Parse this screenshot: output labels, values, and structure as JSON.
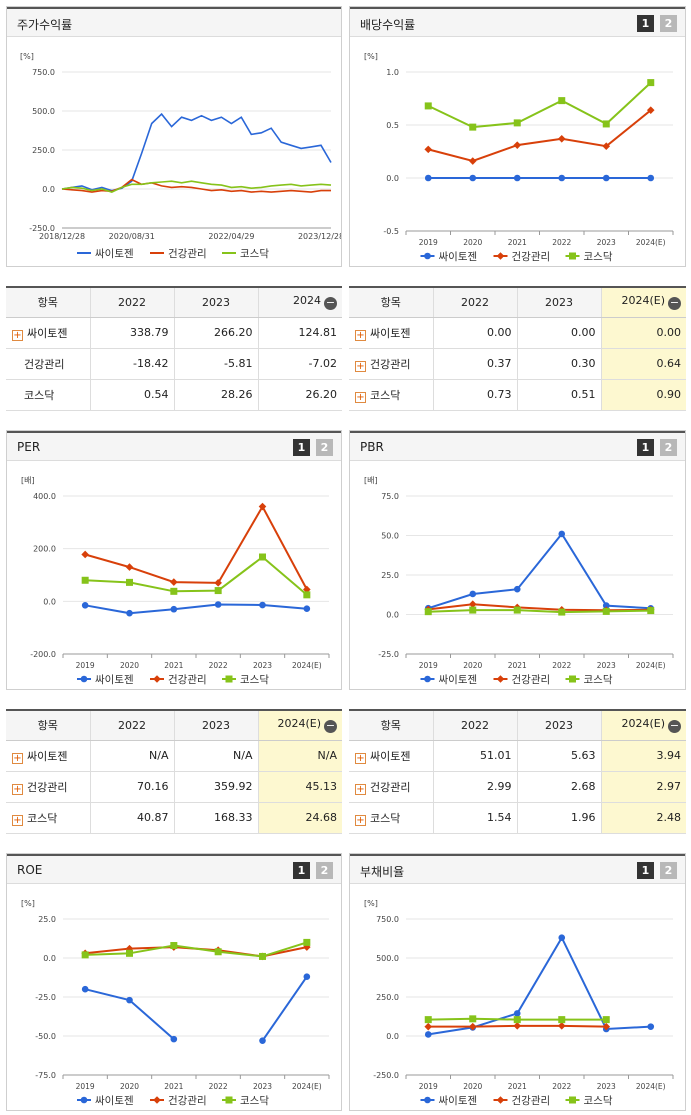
{
  "colors": {
    "series1": "#2a67d8",
    "series2": "#d8400a",
    "series3": "#86c31a"
  },
  "buttons": {
    "b1": "1",
    "b2": "2"
  },
  "table_common": {
    "col_item": "항목"
  },
  "panels": {
    "stock": {
      "title": "주가수익률",
      "unit": "[%]",
      "yticks": [
        "750.0",
        "500.0",
        "250.0",
        "0.0",
        "-250.0"
      ],
      "xticks": [
        "2018/12/28",
        "2020/08/31",
        "2022/04/29",
        "2023/12/28"
      ]
    },
    "dividend": {
      "title": "배당수익률",
      "unit": "[%]",
      "yticks": [
        "1.0",
        "0.5",
        "0.0",
        "-0.5"
      ],
      "xticks": [
        "2019",
        "2020",
        "2021",
        "2022",
        "2023",
        "2024(E)"
      ]
    },
    "per": {
      "title": "PER",
      "unit": "[배]",
      "yticks": [
        "400.0",
        "200.0",
        "0.0",
        "-200.0"
      ],
      "xticks": [
        "2019",
        "2020",
        "2021",
        "2022",
        "2023",
        "2024(E)"
      ]
    },
    "pbr": {
      "title": "PBR",
      "unit": "[배]",
      "yticks": [
        "75.0",
        "50.0",
        "25.0",
        "0.0",
        "-25.0"
      ],
      "xticks": [
        "2019",
        "2020",
        "2021",
        "2022",
        "2023",
        "2024(E)"
      ]
    },
    "roe": {
      "title": "ROE",
      "unit": "[%]",
      "yticks": [
        "25.0",
        "0.0",
        "-25.0",
        "-50.0",
        "-75.0"
      ],
      "xticks": [
        "2019",
        "2020",
        "2021",
        "2022",
        "2023",
        "2024(E)"
      ]
    },
    "debt": {
      "title": "부채비율",
      "unit": "[%]",
      "yticks": [
        "750.0",
        "500.0",
        "250.0",
        "0.0",
        "-250.0"
      ],
      "xticks": [
        "2019",
        "2020",
        "2021",
        "2022",
        "2023",
        "2024(E)"
      ]
    }
  },
  "legend": [
    "싸이토젠",
    "건강관리",
    "코스닥"
  ],
  "tables": {
    "stock": {
      "cols": [
        "2022",
        "2023",
        "2024"
      ],
      "rows": [
        [
          "싸이토젠",
          "338.79",
          "266.20",
          "124.81"
        ],
        [
          "건강관리",
          "-18.42",
          "-5.81",
          "-7.02"
        ],
        [
          "코스닥",
          "0.54",
          "28.26",
          "26.20"
        ]
      ]
    },
    "dividend": {
      "cols": [
        "2022",
        "2023",
        "2024(E)"
      ],
      "rows": [
        [
          "싸이토젠",
          "0.00",
          "0.00",
          "0.00"
        ],
        [
          "건강관리",
          "0.37",
          "0.30",
          "0.64"
        ],
        [
          "코스닥",
          "0.73",
          "0.51",
          "0.90"
        ]
      ]
    },
    "per": {
      "cols": [
        "2022",
        "2023",
        "2024(E)"
      ],
      "rows": [
        [
          "싸이토젠",
          "N/A",
          "N/A",
          "N/A"
        ],
        [
          "건강관리",
          "70.16",
          "359.92",
          "45.13"
        ],
        [
          "코스닥",
          "40.87",
          "168.33",
          "24.68"
        ]
      ]
    },
    "pbr": {
      "cols": [
        "2022",
        "2023",
        "2024(E)"
      ],
      "rows": [
        [
          "싸이토젠",
          "51.01",
          "5.63",
          "3.94"
        ],
        [
          "건강관리",
          "2.99",
          "2.68",
          "2.97"
        ],
        [
          "코스닥",
          "1.54",
          "1.96",
          "2.48"
        ]
      ]
    }
  },
  "chart_data": [
    {
      "id": "stock",
      "type": "line",
      "title": "주가수익률",
      "ylabel": "[%]",
      "ylim": [
        -250,
        750
      ],
      "x": [
        "2018/12/28",
        "2019/03",
        "2019/06",
        "2019/09",
        "2019/12",
        "2020/03",
        "2020/06",
        "2020/08/31",
        "2020/10",
        "2020/12",
        "2021/02",
        "2021/04",
        "2021/06",
        "2021/08",
        "2021/10",
        "2021/12",
        "2022/02",
        "2022/04/29",
        "2022/07",
        "2022/09",
        "2022/11",
        "2023/01",
        "2023/03",
        "2023/05",
        "2023/07",
        "2023/09",
        "2023/12/28",
        "2024/03"
      ],
      "series": [
        {
          "name": "싸이토젠",
          "values": [
            0,
            10,
            20,
            -5,
            10,
            -10,
            5,
            50,
            230,
            420,
            480,
            400,
            460,
            440,
            470,
            440,
            460,
            420,
            460,
            350,
            360,
            390,
            300,
            280,
            260,
            270,
            280,
            170
          ]
        },
        {
          "name": "건강관리",
          "values": [
            0,
            -5,
            -10,
            -20,
            -10,
            -15,
            10,
            60,
            30,
            40,
            20,
            10,
            15,
            10,
            0,
            -10,
            -5,
            -15,
            -10,
            -20,
            -15,
            -20,
            -15,
            -10,
            -15,
            -20,
            -10,
            -10
          ]
        },
        {
          "name": "코스닥",
          "values": [
            0,
            10,
            5,
            -10,
            0,
            -20,
            10,
            30,
            30,
            40,
            45,
            50,
            40,
            50,
            40,
            30,
            25,
            10,
            15,
            5,
            10,
            20,
            25,
            30,
            20,
            25,
            30,
            25
          ]
        }
      ]
    },
    {
      "id": "dividend",
      "type": "line",
      "title": "배당수익률",
      "ylabel": "[%]",
      "ylim": [
        -0.5,
        1.0
      ],
      "x": [
        "2019",
        "2020",
        "2021",
        "2022",
        "2023",
        "2024(E)"
      ],
      "series": [
        {
          "name": "싸이토젠",
          "values": [
            0,
            0,
            0,
            0,
            0,
            0
          ]
        },
        {
          "name": "건강관리",
          "values": [
            0.27,
            0.16,
            0.31,
            0.37,
            0.3,
            0.64
          ]
        },
        {
          "name": "코스닥",
          "values": [
            0.68,
            0.48,
            0.52,
            0.73,
            0.51,
            0.9
          ]
        }
      ]
    },
    {
      "id": "per",
      "type": "line",
      "title": "PER",
      "ylabel": "[배]",
      "ylim": [
        -200,
        400
      ],
      "x": [
        "2019",
        "2020",
        "2021",
        "2022",
        "2023",
        "2024(E)"
      ],
      "series": [
        {
          "name": "싸이토젠",
          "values": [
            -15,
            -45,
            -30,
            -12,
            -14,
            -28
          ]
        },
        {
          "name": "건강관리",
          "values": [
            178,
            130,
            73,
            70.16,
            359.92,
            45.13
          ]
        },
        {
          "name": "코스닥",
          "values": [
            80,
            72,
            38,
            40.87,
            168.33,
            24.68
          ]
        }
      ]
    },
    {
      "id": "pbr",
      "type": "line",
      "title": "PBR",
      "ylabel": "[배]",
      "ylim": [
        -25,
        75
      ],
      "x": [
        "2019",
        "2020",
        "2021",
        "2022",
        "2023",
        "2024(E)"
      ],
      "series": [
        {
          "name": "싸이토젠",
          "values": [
            4,
            13,
            16,
            51.01,
            5.63,
            3.94
          ]
        },
        {
          "name": "건강관리",
          "values": [
            3.2,
            6.5,
            4.5,
            2.99,
            2.68,
            2.97
          ]
        },
        {
          "name": "코스닥",
          "values": [
            1.8,
            2.8,
            2.8,
            1.54,
            1.96,
            2.48
          ]
        }
      ]
    },
    {
      "id": "roe",
      "type": "line",
      "title": "ROE",
      "ylabel": "[%]",
      "ylim": [
        -75,
        25
      ],
      "x": [
        "2019",
        "2020",
        "2021",
        "2022",
        "2023",
        "2024(E)"
      ],
      "series": [
        {
          "name": "싸이토젠",
          "values": [
            -20,
            -27,
            -52,
            null,
            -53,
            -12
          ]
        },
        {
          "name": "건강관리",
          "values": [
            3,
            6,
            7,
            5,
            1,
            7
          ]
        },
        {
          "name": "코스닥",
          "values": [
            2,
            3,
            8,
            4,
            1,
            10
          ]
        }
      ]
    },
    {
      "id": "debt",
      "type": "line",
      "title": "부채비율",
      "ylabel": "[%]",
      "ylim": [
        -250,
        750
      ],
      "x": [
        "2019",
        "2020",
        "2021",
        "2022",
        "2023",
        "2024(E)"
      ],
      "series": [
        {
          "name": "싸이토젠",
          "values": [
            10,
            55,
            145,
            630,
            45,
            60
          ]
        },
        {
          "name": "건강관리",
          "values": [
            60,
            60,
            65,
            65,
            60,
            null
          ]
        },
        {
          "name": "코스닥",
          "values": [
            105,
            110,
            105,
            105,
            105,
            null
          ]
        }
      ]
    }
  ]
}
